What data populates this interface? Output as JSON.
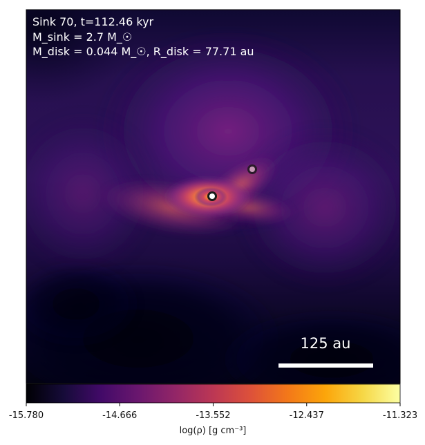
{
  "chart_data": {
    "type": "heatmap",
    "title_line1": "Sink 70, t=112.46 kyr",
    "title_line2": "M_sink = 2.7 M_☉",
    "title_line3": "M_disk = 0.044 M_☉, R_disk = 77.71 au",
    "scalebar": {
      "label": "125 au",
      "length_au": 125
    },
    "colorbar": {
      "label": "log(ρ) [g cm⁻³]",
      "range": [
        -15.78,
        -11.323
      ],
      "ticks": [
        "-15.780",
        "-14.666",
        "-13.552",
        "-12.437",
        "-11.323"
      ],
      "tick_values": [
        -15.78,
        -14.666,
        -13.552,
        -12.437,
        -11.323
      ],
      "colormap": "inferno"
    },
    "sinks": [
      {
        "name": "primary-sink",
        "color": "#ffffff"
      },
      {
        "name": "secondary-sink",
        "color": "#c99ab8"
      }
    ],
    "colors": {
      "background_low": "#000004",
      "mid": "#6a1a79",
      "high": "#fcffa4"
    }
  }
}
